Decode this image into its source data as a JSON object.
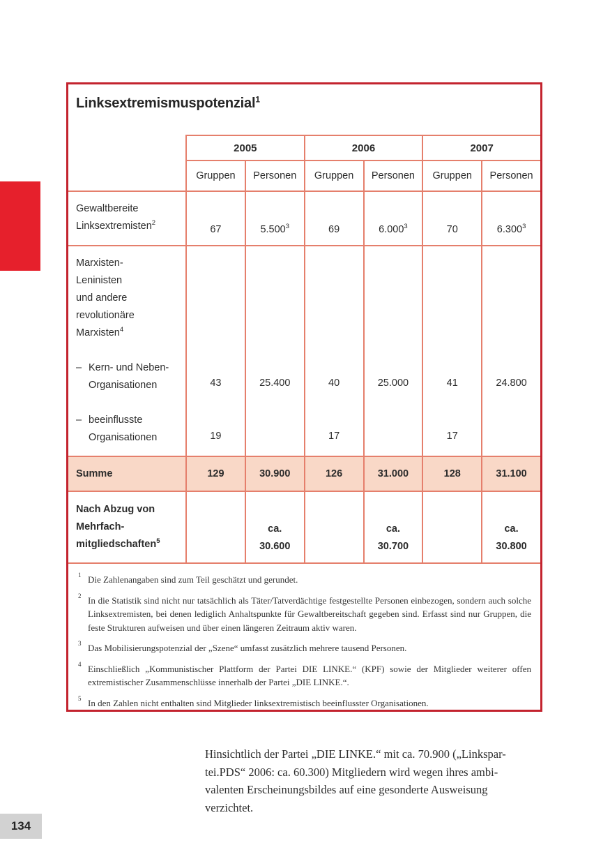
{
  "page_number": "134",
  "table": {
    "title": "Linksextremismuspotenzial",
    "title_sup": "1",
    "years": [
      "2005",
      "2006",
      "2007"
    ],
    "subheaders": [
      "Gruppen",
      "Personen"
    ],
    "rowA": {
      "label": "Gewaltbereite\nLinksextremisten",
      "sup": "2",
      "values": [
        {
          "v": "67"
        },
        {
          "v": "5.500",
          "s": "3"
        },
        {
          "v": "69"
        },
        {
          "v": "6.000",
          "s": "3"
        },
        {
          "v": "70"
        },
        {
          "v": "6.300",
          "s": "3"
        }
      ]
    },
    "rowB": {
      "label": "Marxisten-\nLeninisten\nund andere\nrevolutionäre\nMarxisten",
      "sup": "4",
      "items": [
        {
          "dash": "–",
          "label": "Kern- und Neben-\nOrganisationen"
        },
        {
          "dash": "–",
          "label": "beeinflusste\nOrganisationen"
        }
      ],
      "values1": [
        "43",
        "25.400",
        "40",
        "25.000",
        "41",
        "24.800"
      ],
      "values2": [
        "19",
        "",
        "17",
        "",
        "17",
        ""
      ]
    },
    "sum": {
      "label": "Summe",
      "values": [
        "129",
        "30.900",
        "126",
        "31.000",
        "128",
        "31.100"
      ]
    },
    "after": {
      "label": "Nach Abzug von\nMehrfach-\nmitgliedschaften",
      "sup": "5",
      "values": [
        "",
        "ca.\n30.600",
        "",
        "ca.\n30.700",
        "",
        "ca.\n30.800"
      ]
    }
  },
  "footnotes": [
    {
      "marker": "1",
      "text": "Die Zahlenangaben sind zum Teil geschätzt und gerundet."
    },
    {
      "marker": "2",
      "text": "In die Statistik sind nicht nur tatsächlich als Täter/Tatverdächtige festgestellte Personen einbezogen, sondern auch solche Linksextremisten, bei denen lediglich Anhaltspunkte für Gewaltbereitschaft gegeben sind. Erfasst sind nur Gruppen, die feste Strukturen aufweisen und über einen längeren Zeitraum aktiv waren."
    },
    {
      "marker": "3",
      "text": "Das Mobilisierungspotenzial der „Szene“ umfasst zusätzlich mehrere tausend Personen."
    },
    {
      "marker": "4",
      "text": "Einschließlich „Kommunistischer Plattform der Partei DIE LINKE.“ (KPF) sowie der Mitglieder weiterer offen extremistischer Zusammenschlüsse innerhalb der Partei „DIE LINKE.“."
    },
    {
      "marker": "5",
      "text": "In den Zahlen nicht enthalten sind Mitglieder linksextremistisch beeinflusster Organisationen."
    }
  ],
  "paragraph": {
    "text": "Hinsichtlich der Partei „DIE LINKE.“ mit ca. 70.900 („Linkspar-\ntei.PDS“ 2006: ca. 60.300) Mitgliedern wird wegen ihres ambi-\nvalenten Erscheinungsbildes auf eine gesonderte Ausweisung\nverzichtet."
  },
  "colors": {
    "outer_border": "#c3232e",
    "grid_line": "#e57f6c",
    "sum_row_bg": "#f9d8c7",
    "tab_red": "#e6202c",
    "page_number_bg": "#d2d2d2"
  }
}
